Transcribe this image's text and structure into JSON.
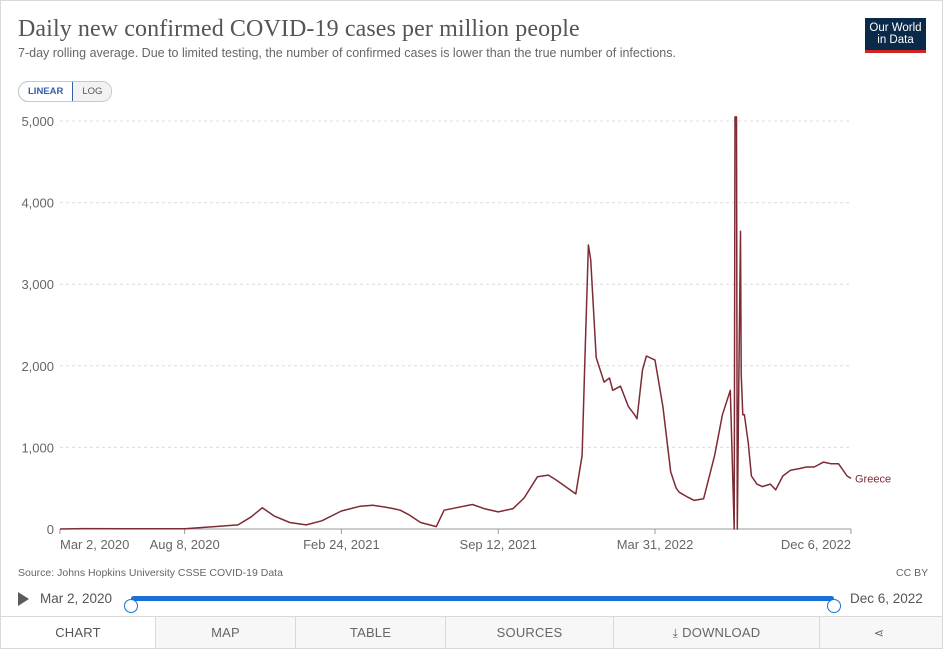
{
  "header": {
    "title": "Daily new confirmed COVID-19 cases per million people",
    "subtitle": "7-day rolling average. Due to limited testing, the number of confirmed cases is lower than the true number of infections.",
    "logo_line1": "Our World",
    "logo_line2": "in Data"
  },
  "scale_toggle": {
    "linear": "LINEAR",
    "log": "LOG",
    "active": "linear"
  },
  "footer": {
    "source": "Source: Johns Hopkins University CSSE COVID-19 Data",
    "license": "CC BY"
  },
  "timeline": {
    "start": "Mar 2, 2020",
    "end": "Dec 6, 2022",
    "start_fraction": 0,
    "end_fraction": 1
  },
  "tabs": [
    {
      "label": "CHART",
      "icon": ""
    },
    {
      "label": "MAP",
      "icon": ""
    },
    {
      "label": "TABLE",
      "icon": ""
    },
    {
      "label": "SOURCES",
      "icon": ""
    },
    {
      "label": "DOWNLOAD",
      "icon": "download-icon"
    },
    {
      "label": "",
      "icon": "share-icon"
    }
  ],
  "colors": {
    "series": "#7d2b34",
    "accent": "#1a71d5",
    "logo_bg": "#0b2a4a",
    "logo_bar": "#ce261e"
  },
  "chart_data": {
    "type": "line",
    "title": "Daily new confirmed COVID-19 cases per million people",
    "xlabel": "",
    "ylabel": "",
    "x_ticks": [
      "Mar 2, 2020",
      "Aug 8, 2020",
      "Feb 24, 2021",
      "Sep 12, 2021",
      "Mar 31, 2022",
      "Dec 6, 2022"
    ],
    "y_ticks": [
      "0",
      "1,000",
      "2,000",
      "3,000",
      "4,000",
      "5,000"
    ],
    "ylim": [
      0,
      5200
    ],
    "xlim": [
      "2020-03-02",
      "2022-12-06"
    ],
    "grid": "horizontal",
    "legend": "end-of-line label",
    "series": [
      {
        "name": "Greece",
        "color": "#7d2b34",
        "x": [
          "2020-03-02",
          "2020-04-01",
          "2020-06-01",
          "2020-08-08",
          "2020-09-15",
          "2020-10-15",
          "2020-11-01",
          "2020-11-15",
          "2020-11-30",
          "2020-12-20",
          "2021-01-10",
          "2021-01-30",
          "2021-02-24",
          "2021-03-20",
          "2021-04-05",
          "2021-04-20",
          "2021-05-01",
          "2021-05-10",
          "2021-05-20",
          "2021-06-05",
          "2021-06-25",
          "2021-07-05",
          "2021-07-20",
          "2021-08-10",
          "2021-08-25",
          "2021-09-12",
          "2021-10-01",
          "2021-10-15",
          "2021-11-01",
          "2021-11-15",
          "2021-11-25",
          "2021-12-20",
          "2021-12-28",
          "2022-01-01",
          "2022-01-05",
          "2022-01-08",
          "2022-01-15",
          "2022-01-25",
          "2022-02-01",
          "2022-02-05",
          "2022-02-15",
          "2022-02-25",
          "2022-03-05",
          "2022-03-08",
          "2022-03-15",
          "2022-03-20",
          "2022-03-31",
          "2022-04-10",
          "2022-04-20",
          "2022-04-27",
          "2022-05-01",
          "2022-05-10",
          "2022-05-20",
          "2022-06-01",
          "2022-06-15",
          "2022-06-25",
          "2022-07-05",
          "2022-07-10",
          "2022-07-11",
          "2022-07-13",
          "2022-07-14",
          "2022-07-16",
          "2022-07-18",
          "2022-07-19",
          "2022-07-21",
          "2022-07-23",
          "2022-07-28",
          "2022-08-01",
          "2022-08-08",
          "2022-08-15",
          "2022-08-25",
          "2022-09-01",
          "2022-09-10",
          "2022-09-20",
          "2022-10-01",
          "2022-10-10",
          "2022-10-20",
          "2022-11-01",
          "2022-11-10",
          "2022-11-20",
          "2022-12-01",
          "2022-12-06"
        ],
        "values": [
          0,
          5,
          3,
          2,
          30,
          50,
          150,
          260,
          160,
          80,
          50,
          100,
          220,
          280,
          290,
          270,
          250,
          230,
          180,
          80,
          30,
          230,
          260,
          300,
          250,
          210,
          250,
          380,
          640,
          660,
          600,
          430,
          900,
          2200,
          3480,
          3300,
          2100,
          1800,
          1850,
          1700,
          1750,
          1500,
          1400,
          1350,
          1950,
          2120,
          2070,
          1500,
          700,
          500,
          450,
          400,
          350,
          370,
          900,
          1400,
          1700,
          0,
          5050,
          5050,
          0,
          1900,
          3650,
          1900,
          1400,
          1400,
          1050,
          650,
          550,
          520,
          550,
          480,
          650,
          720,
          740,
          760,
          760,
          820,
          800,
          800,
          650,
          620
        ]
      }
    ]
  }
}
